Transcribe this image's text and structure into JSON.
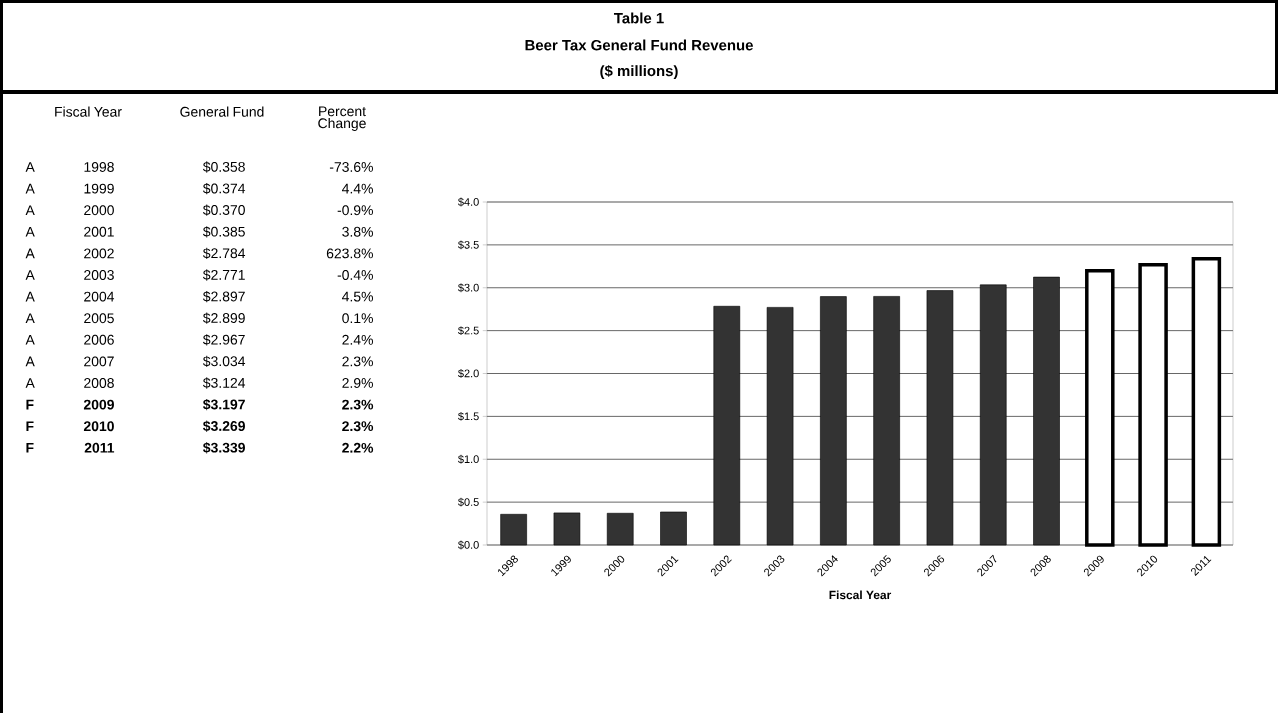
{
  "chart_data": {
    "type": "bar",
    "title": "Table 1",
    "subtitle": "Beer Tax General Fund Revenue",
    "xlabel": "Fiscal Year",
    "categories": [
      "1998",
      "1999",
      "2000",
      "2001",
      "2002",
      "2003",
      "2004",
      "2005",
      "2006",
      "2007",
      "2008",
      "2009",
      "2010",
      "2011"
    ],
    "values": [
      0.358,
      0.374,
      0.37,
      0.385,
      2.784,
      2.771,
      2.897,
      2.899,
      2.967,
      3.034,
      3.124,
      3.197,
      3.269,
      3.339
    ],
    "colors": [
      "#333333",
      "#333333",
      "#333333",
      "#333333",
      "#333333",
      "#333333",
      "#333333",
      "#333333",
      "#333333",
      "#333333",
      "#333333",
      "#ffffff",
      "#ffffff",
      "#ffffff"
    ],
    "ylim": [
      0,
      4
    ],
    "yticks": [
      {
        "value": 0,
        "label": "$0.0"
      },
      {
        "value": 0.5,
        "label": "$0.5"
      },
      {
        "value": 1,
        "label": "$1.0"
      },
      {
        "value": 1.5,
        "label": "$1.5"
      },
      {
        "value": 2,
        "label": "$2.0"
      },
      {
        "value": 2.5,
        "label": "$2.5"
      },
      {
        "value": 3,
        "label": "$3.0"
      },
      {
        "value": 3.5,
        "label": "$3.5"
      },
      {
        "value": 4,
        "label": "$4.0"
      }
    ],
    "grid": "y",
    "annotations": [
      "($ millions)",
      "Fiscal Year",
      "General Fund",
      "Percent Change",
      "A",
      "$0.358",
      "-73.6%",
      "A",
      "$0.374",
      "4.4%",
      "A",
      "$0.370",
      "-0.9%",
      "A",
      "$0.385",
      "3.8%",
      "A",
      "$2.784",
      "623.8%",
      "A",
      "$2.771",
      "-0.4%",
      "A",
      "$2.897",
      "4.5%",
      "A",
      "$2.899",
      "0.1%",
      "A",
      "$2.967",
      "2.4%",
      "A",
      "$3.034",
      "2.3%",
      "A",
      "$3.124",
      "2.9%",
      "F",
      "$3.197",
      "2.3%",
      "F",
      "$3.269",
      "2.3%",
      "F",
      "$3.339",
      "2.2%"
    ]
  }
}
